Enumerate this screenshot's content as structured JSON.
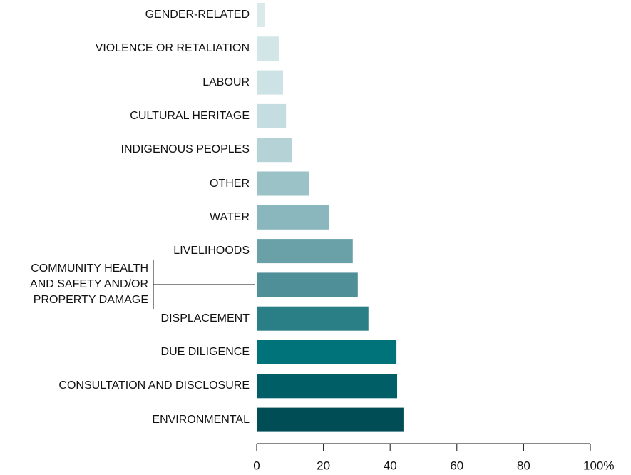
{
  "chart_data": {
    "type": "bar",
    "orientation": "horizontal",
    "categories": [
      "GENDER-RELATED",
      "VIOLENCE OR RETALIATION",
      "LABOUR",
      "CULTURAL HERITAGE",
      "INDIGENOUS PEOPLES",
      "OTHER",
      "WATER",
      "LIVELIHOODS",
      "COMMUNITY HEALTH\nAND SAFETY AND/OR\nPROPERTY DAMAGE",
      "DISPLACEMENT",
      "DUE DILIGENCE",
      "CONSULTATION AND DISCLOSURE",
      "ENVIRONMENTAL"
    ],
    "values": [
      2.4,
      6.8,
      7.9,
      8.8,
      10.5,
      15.6,
      21.8,
      28.8,
      30.3,
      33.5,
      41.9,
      42.1,
      44
    ],
    "colors": [
      "#dce9ea",
      "#d2e5e7",
      "#cde2e5",
      "#c3dde0",
      "#b5d3d7",
      "#9ac2c7",
      "#8ab7bd",
      "#6aa0a8",
      "#4f8f98",
      "#2a7f87",
      "#00727a",
      "#005f66",
      "#004d55"
    ],
    "xlim": [
      0,
      100
    ],
    "xticks": [
      0,
      20,
      40,
      60,
      80,
      {
        "value": 100,
        "label": "100%"
      }
    ]
  }
}
